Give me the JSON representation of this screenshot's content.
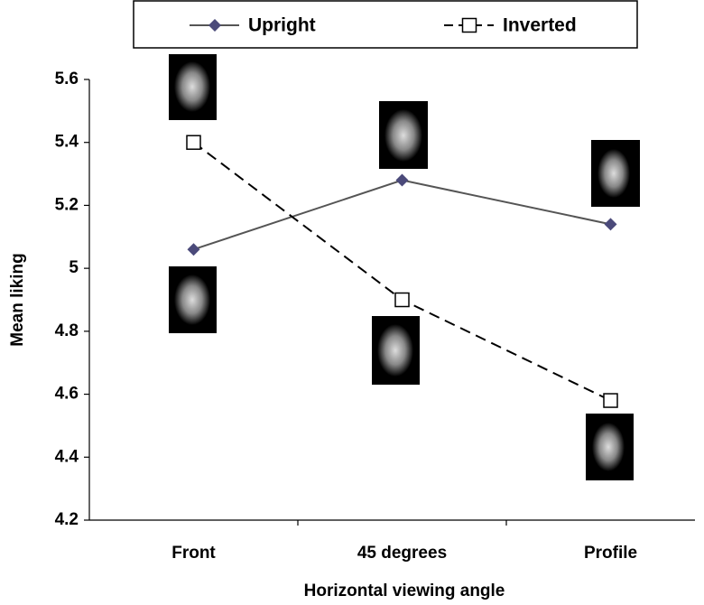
{
  "chart_data": {
    "type": "line",
    "categories": [
      "Front",
      "45 degrees",
      "Profile"
    ],
    "series": [
      {
        "name": "Upright",
        "color": "#4b4a7a",
        "values": [
          5.06,
          5.28,
          5.14
        ]
      },
      {
        "name": "Inverted",
        "color": "#000000",
        "values": [
          5.4,
          4.9,
          4.58
        ]
      }
    ],
    "ylim": [
      4.2,
      5.6
    ],
    "yticks": [
      4.2,
      4.4,
      4.6,
      4.8,
      5,
      5.2,
      5.4,
      5.6
    ],
    "x_label": "Horizontal viewing angle",
    "y_label": "Mean liking",
    "legend": "top",
    "grid": false
  }
}
